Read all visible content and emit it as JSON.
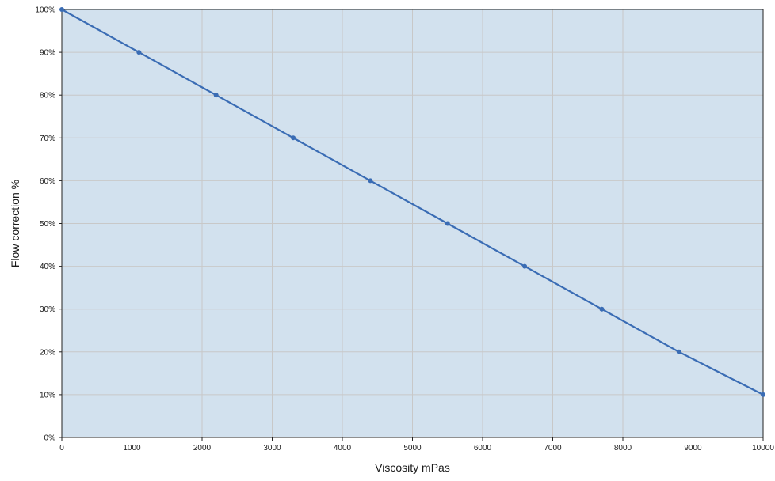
{
  "chart_data": {
    "type": "line",
    "title": "",
    "xlabel": "Viscosity mPas",
    "ylabel": "Flow correction %",
    "x_ticks": [
      0,
      1000,
      2000,
      3000,
      4000,
      5000,
      6000,
      7000,
      8000,
      9000,
      10000
    ],
    "y_ticks": [
      0,
      10,
      20,
      30,
      40,
      50,
      60,
      70,
      80,
      90,
      100
    ],
    "y_tick_labels": [
      "0%",
      "10%",
      "20%",
      "30%",
      "40%",
      "50%",
      "60%",
      "70%",
      "80%",
      "90%",
      "100%"
    ],
    "xlim": [
      0,
      10000
    ],
    "ylim": [
      0,
      100
    ],
    "grid": true,
    "legend": "none",
    "series": [
      {
        "x": [
          0,
          1100,
          2200,
          3300,
          4400,
          5500,
          6600,
          7700,
          8800,
          10000
        ],
        "y": [
          100,
          90,
          80,
          70,
          60,
          50,
          40,
          30,
          20,
          10
        ]
      }
    ]
  },
  "colors": {
    "plot_background": "#d2e1ee",
    "grid": "#c8c8c8",
    "line": "#3a6cb4",
    "axis": "#222222"
  }
}
